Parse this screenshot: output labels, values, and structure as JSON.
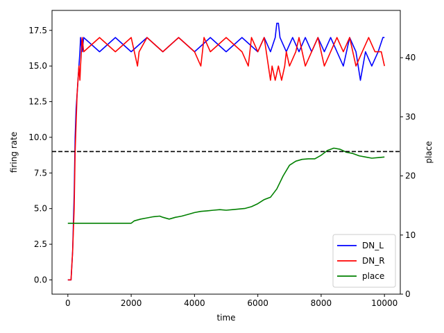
{
  "chart_data": {
    "type": "line",
    "xlabel": "time",
    "ylabel_left": "firing rate",
    "ylabel_right": "place",
    "xlim": [
      -500,
      10500
    ],
    "ylim_left": [
      -1.0,
      18.9
    ],
    "ylim_right": [
      0,
      48
    ],
    "x_ticks": [
      0,
      2000,
      4000,
      6000,
      8000,
      10000
    ],
    "x_tick_labels": [
      "0",
      "2000",
      "4000",
      "6000",
      "8000",
      "10000"
    ],
    "y_left_ticks": [
      0,
      2.5,
      5,
      7.5,
      10,
      12.5,
      15,
      17.5
    ],
    "y_left_tick_labels": [
      "0.0",
      "2.5",
      "5.0",
      "7.5",
      "10.0",
      "12.5",
      "15.0",
      "17.5"
    ],
    "y_right_ticks": [
      0,
      10,
      20,
      30,
      40
    ],
    "y_right_tick_labels": [
      "0",
      "10",
      "20",
      "30",
      "40"
    ],
    "threshold": {
      "value": 9,
      "axis": "left",
      "style": "dashed",
      "color": "#000000"
    },
    "legend": {
      "position": "lower-right"
    },
    "series": [
      {
        "name": "DN_L",
        "axis": "left",
        "color": "#0000ff",
        "x": [
          0,
          100,
          150,
          200,
          230,
          260,
          290,
          320,
          350,
          380,
          400,
          450,
          500,
          1000,
          1500,
          2000,
          2500,
          3000,
          3500,
          4000,
          4500,
          5000,
          5500,
          6000,
          6200,
          6400,
          6550,
          6600,
          6650,
          6700,
          6900,
          7100,
          7300,
          7500,
          7700,
          7900,
          8100,
          8300,
          8500,
          8700,
          8900,
          9100,
          9240,
          9400,
          9600,
          9800,
          9950,
          10000
        ],
        "y": [
          0,
          0,
          2,
          6,
          10,
          12,
          13,
          14,
          15,
          16,
          17,
          16,
          17,
          16,
          17,
          16,
          17,
          16,
          17,
          16,
          17,
          16,
          17,
          16,
          17,
          16,
          17,
          18,
          18,
          17,
          16,
          17,
          16,
          17,
          16,
          17,
          16,
          17,
          16,
          15,
          17,
          16,
          14,
          16,
          15,
          16,
          17,
          17
        ]
      },
      {
        "name": "DN_R",
        "axis": "left",
        "color": "#ff0000",
        "x": [
          0,
          100,
          150,
          200,
          230,
          260,
          290,
          320,
          350,
          380,
          400,
          450,
          500,
          1000,
          1500,
          2000,
          2200,
          2250,
          2500,
          3000,
          3500,
          4000,
          4200,
          4300,
          4500,
          5000,
          5500,
          5700,
          5800,
          6000,
          6200,
          6400,
          6450,
          6550,
          6650,
          6750,
          6850,
          6900,
          7000,
          7200,
          7300,
          7500,
          7700,
          7900,
          8100,
          8300,
          8500,
          8700,
          8900,
          9100,
          9300,
          9500,
          9700,
          9900,
          10000
        ],
        "y": [
          0,
          0,
          2,
          5,
          9,
          11,
          13,
          14,
          15,
          14,
          15,
          17,
          16,
          17,
          16,
          17,
          15,
          16,
          17,
          16,
          17,
          16,
          15,
          17,
          16,
          17,
          16,
          15,
          17,
          16,
          17,
          14,
          15,
          14,
          15,
          14,
          15,
          16,
          15,
          16,
          17,
          15,
          16,
          17,
          15,
          16,
          17,
          16,
          17,
          15,
          16,
          17,
          16,
          16,
          15
        ]
      },
      {
        "name": "place",
        "axis": "right",
        "color": "#008000",
        "x": [
          0,
          500,
          1000,
          1500,
          2000,
          2100,
          2300,
          2500,
          2700,
          2900,
          3000,
          3200,
          3400,
          3600,
          3800,
          4000,
          4200,
          4400,
          4600,
          4800,
          5000,
          5200,
          5400,
          5600,
          5800,
          6000,
          6200,
          6400,
          6600,
          6800,
          7000,
          7200,
          7400,
          7600,
          7800,
          8000,
          8200,
          8400,
          8600,
          8800,
          9000,
          9200,
          9400,
          9600,
          9800,
          10000
        ],
        "y": [
          12,
          12,
          12,
          12,
          12,
          12.4,
          12.7,
          12.9,
          13.1,
          13.2,
          13.0,
          12.7,
          13.0,
          13.2,
          13.5,
          13.8,
          14.0,
          14.1,
          14.2,
          14.3,
          14.2,
          14.3,
          14.4,
          14.5,
          14.8,
          15.3,
          16.0,
          16.4,
          17.8,
          20.0,
          21.8,
          22.5,
          22.8,
          22.9,
          22.9,
          23.5,
          24.3,
          24.7,
          24.5,
          24.0,
          23.8,
          23.4,
          23.2,
          23.0,
          23.1,
          23.2
        ]
      }
    ]
  }
}
